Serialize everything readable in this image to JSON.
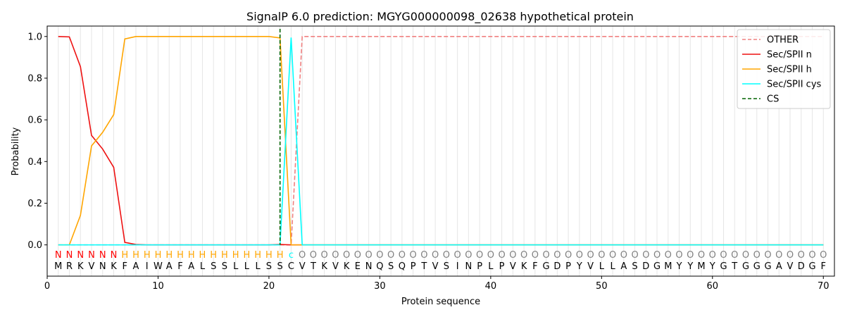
{
  "chart_data": {
    "type": "line",
    "title": "SignalP 6.0 prediction: MGYG000000098_02638 hypothetical protein",
    "xlabel": "Protein sequence",
    "ylabel": "Probability",
    "xlim": [
      0,
      71
    ],
    "ylim": [
      -0.15,
      1.05
    ],
    "xticks": [
      0,
      10,
      20,
      30,
      40,
      50,
      60,
      70
    ],
    "yticks": [
      "0.0",
      "0.2",
      "0.4",
      "0.6",
      "0.8",
      "1.0"
    ],
    "sequence": [
      "M",
      "R",
      "K",
      "V",
      "N",
      "K",
      "F",
      "A",
      "I",
      "W",
      "A",
      "F",
      "A",
      "L",
      "S",
      "S",
      "L",
      "L",
      "L",
      "S",
      "S",
      "C",
      "V",
      "T",
      "K",
      "V",
      "K",
      "E",
      "N",
      "Q",
      "S",
      "Q",
      "P",
      "T",
      "V",
      "S",
      "I",
      "N",
      "P",
      "L",
      "P",
      "V",
      "K",
      "F",
      "G",
      "D",
      "P",
      "Y",
      "V",
      "L",
      "L",
      "A",
      "S",
      "D",
      "G",
      "M",
      "Y",
      "Y",
      "M",
      "Y",
      "G",
      "T",
      "G",
      "G",
      "G",
      "A",
      "V",
      "D",
      "G",
      "F"
    ],
    "labels": [
      "N",
      "N",
      "N",
      "N",
      "N",
      "N",
      "H",
      "H",
      "H",
      "H",
      "H",
      "H",
      "H",
      "H",
      "H",
      "H",
      "H",
      "H",
      "H",
      "H",
      "H",
      "c",
      "O",
      "O",
      "O",
      "O",
      "O",
      "O",
      "O",
      "O",
      "O",
      "O",
      "O",
      "O",
      "O",
      "O",
      "O",
      "O",
      "O",
      "O",
      "O",
      "O",
      "O",
      "O",
      "O",
      "O",
      "O",
      "O",
      "O",
      "O",
      "O",
      "O",
      "O",
      "O",
      "O",
      "O",
      "O",
      "O",
      "O",
      "O",
      "O",
      "O",
      "O",
      "O",
      "O",
      "O",
      "O",
      "O",
      "O",
      "O"
    ],
    "label_colors": {
      "N": "#ff0000",
      "H": "#ffa500",
      "c": "#00ffff",
      "O": "#808080"
    },
    "series": [
      {
        "name": "OTHER",
        "color": "#f08080",
        "dash": true,
        "values": [
          0,
          0,
          0,
          0,
          0,
          0,
          0,
          0,
          0,
          0,
          0,
          0,
          0,
          0,
          0,
          0,
          0,
          0,
          0,
          0,
          0,
          0,
          1,
          1,
          1,
          1,
          1,
          1,
          1,
          1,
          1,
          1,
          1,
          1,
          1,
          1,
          1,
          1,
          1,
          1,
          1,
          1,
          1,
          1,
          1,
          1,
          1,
          1,
          1,
          1,
          1,
          1,
          1,
          1,
          1,
          1,
          1,
          1,
          1,
          1,
          1,
          1,
          1,
          1,
          1,
          1,
          1,
          1,
          1,
          1
        ]
      },
      {
        "name": "Sec/SPII n",
        "color": "#ee1111",
        "dash": false,
        "values": [
          1.0,
          0.998,
          0.855,
          0.525,
          0.46,
          0.372,
          0.012,
          0.002,
          0,
          0,
          0,
          0,
          0,
          0,
          0,
          0,
          0,
          0,
          0,
          0,
          0.002,
          0,
          0,
          0,
          0,
          0,
          0,
          0,
          0,
          0,
          0,
          0,
          0,
          0,
          0,
          0,
          0,
          0,
          0,
          0,
          0,
          0,
          0,
          0,
          0,
          0,
          0,
          0,
          0,
          0,
          0,
          0,
          0,
          0,
          0,
          0,
          0,
          0,
          0,
          0,
          0,
          0,
          0,
          0,
          0,
          0,
          0,
          0,
          0,
          0
        ]
      },
      {
        "name": "Sec/SPII h",
        "color": "#ffa500",
        "dash": false,
        "values": [
          0,
          0,
          0.142,
          0.475,
          0.54,
          0.625,
          0.988,
          1.0,
          1.0,
          1.0,
          1.0,
          1.0,
          1.0,
          1.0,
          1.0,
          1.0,
          1.0,
          1.0,
          1.0,
          1.0,
          0.993,
          0,
          0,
          0,
          0,
          0,
          0,
          0,
          0,
          0,
          0,
          0,
          0,
          0,
          0,
          0,
          0,
          0,
          0,
          0,
          0,
          0,
          0,
          0,
          0,
          0,
          0,
          0,
          0,
          0,
          0,
          0,
          0,
          0,
          0,
          0,
          0,
          0,
          0,
          0,
          0,
          0,
          0,
          0,
          0,
          0,
          0,
          0,
          0,
          0
        ]
      },
      {
        "name": "Sec/SPII cys",
        "color": "#00ffff",
        "dash": false,
        "values": [
          0,
          0,
          0,
          0,
          0,
          0,
          0,
          0,
          0,
          0,
          0,
          0,
          0,
          0,
          0,
          0,
          0,
          0,
          0,
          0,
          0,
          0.995,
          0,
          0,
          0,
          0,
          0,
          0,
          0,
          0,
          0,
          0,
          0,
          0,
          0,
          0,
          0,
          0,
          0,
          0,
          0,
          0,
          0,
          0,
          0,
          0,
          0,
          0,
          0,
          0,
          0,
          0,
          0,
          0,
          0,
          0,
          0,
          0,
          0,
          0,
          0,
          0,
          0,
          0,
          0,
          0,
          0,
          0,
          0,
          0
        ]
      },
      {
        "name": "CS",
        "color": "#006400",
        "dash": true,
        "vline_x": 21
      }
    ],
    "legend_position": "top-right",
    "grid": "vertical lines at each residue"
  }
}
